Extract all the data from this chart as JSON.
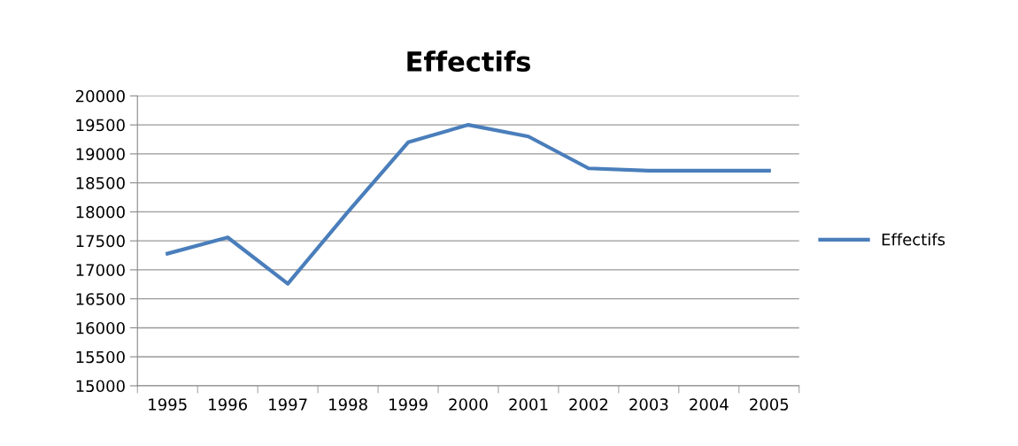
{
  "chart_data": {
    "type": "line",
    "title": "Effectifs",
    "categories": [
      "1995",
      "1996",
      "1997",
      "1998",
      "1999",
      "2000",
      "2001",
      "2002",
      "2003",
      "2004",
      "2005"
    ],
    "series": [
      {
        "name": "Effectifs",
        "color": "#4a7ebb",
        "values": [
          17280,
          17560,
          16760,
          18000,
          19200,
          19500,
          19300,
          18750,
          18710,
          18710,
          18710
        ]
      }
    ],
    "ylim": [
      15000,
      20000
    ],
    "yticks": [
      15000,
      15500,
      16000,
      16500,
      17000,
      17500,
      18000,
      18500,
      19000,
      19500,
      20000
    ],
    "grid": "y",
    "legend": "right",
    "marker": "none",
    "line_style": "solid"
  }
}
